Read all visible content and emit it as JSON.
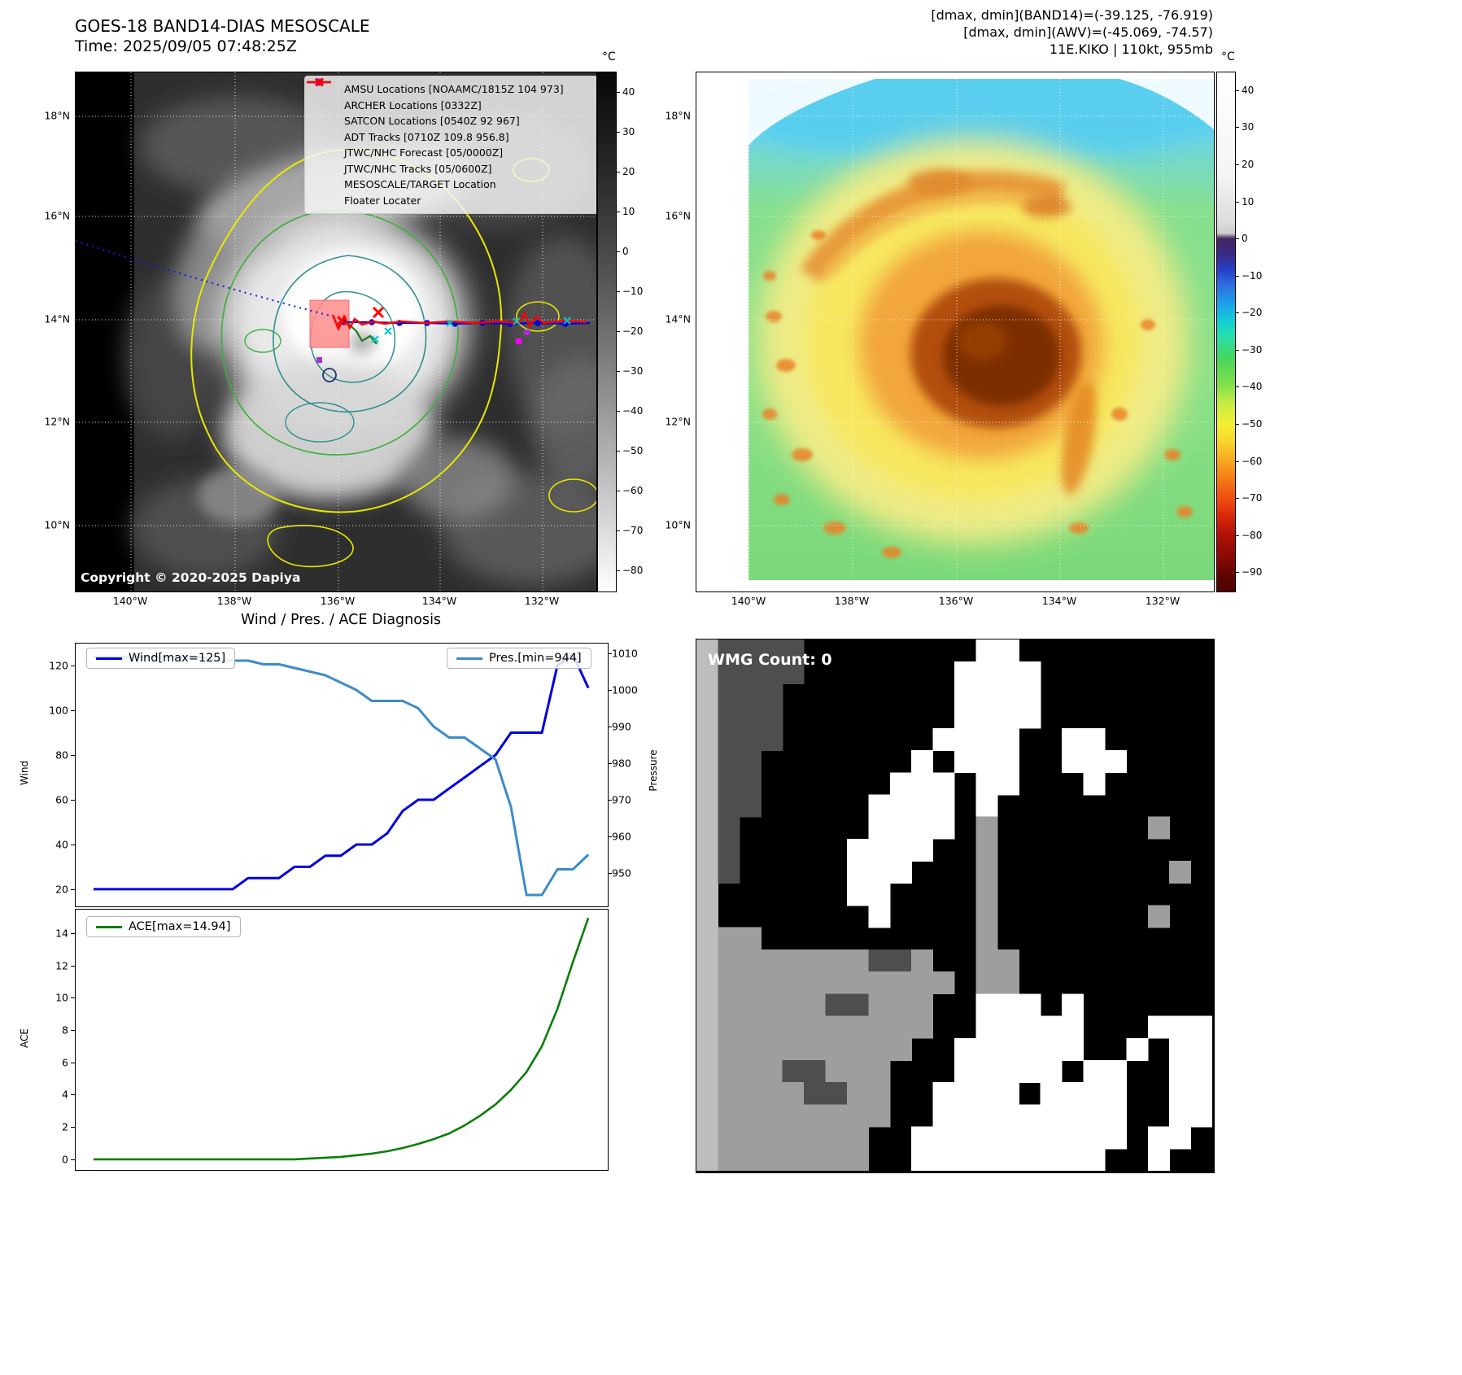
{
  "band14_panel": {
    "title": "GOES-18 BAND14-DIAS MESOSCALE",
    "subtitle": "Time: 2025/09/05 07:48:25Z",
    "copyright": "Copyright © 2020-2025 Dapiya",
    "colorbar": {
      "unit": "°C",
      "vmax": 45,
      "vmin": -85,
      "tick_values": [
        40,
        30,
        20,
        10,
        0,
        -10,
        -20,
        -30,
        -40,
        -50,
        -60,
        -70,
        -80
      ],
      "tick_labels": [
        "40",
        "30",
        "20",
        "10",
        "0",
        "−10",
        "−20",
        "−30",
        "−40",
        "−50",
        "−60",
        "−70",
        "−80"
      ]
    },
    "lat_ticks": [
      "18°N",
      "16°N",
      "14°N",
      "12°N",
      "10°N"
    ],
    "lon_ticks": [
      "140°W",
      "138°W",
      "136°W",
      "134°W",
      "132°W"
    ],
    "legend": [
      {
        "label": "AMSU Locations [NOAAMC/1815Z 104 973]",
        "marker": "square",
        "color": "#ff00ff"
      },
      {
        "label": "ARCHER Locations [0332Z]",
        "marker": "square",
        "color": "#a832d8"
      },
      {
        "label": "SATCON Locations [0540Z 92 967]",
        "marker": "x",
        "color": "#00c5cd"
      },
      {
        "label": "ADT Tracks [0710Z 109.8 956.8]",
        "marker": "line",
        "color": "#1f7a1f"
      },
      {
        "label": "JTWC/NHC Forecast [05/0000Z]",
        "marker": "dotted-line",
        "color": "#0000ff"
      },
      {
        "label": "JTWC/NHC Tracks [05/0600Z]",
        "marker": "line-marker",
        "color": "#0000ff"
      },
      {
        "label": "MESOSCALE/TARGET Location",
        "marker": "X",
        "color": "#ff0000"
      },
      {
        "label": "Floater Locater",
        "marker": "line",
        "color": "#ff0000"
      }
    ]
  },
  "enhanced_panel": {
    "header_lines": [
      "[dmax, dmin](BAND14)=(-39.125, -76.919)",
      "[dmax, dmin](AWV)=(-45.069, -74.57)",
      "11E.KIKO | 110kt, 955mb"
    ],
    "colorbar": {
      "unit": "°C",
      "vmax": 45,
      "vmin": -95,
      "tick_values": [
        40,
        30,
        20,
        10,
        0,
        -10,
        -20,
        -30,
        -40,
        -50,
        -60,
        -70,
        -80,
        -90
      ],
      "tick_labels": [
        "40",
        "30",
        "20",
        "10",
        "0",
        "−10",
        "−20",
        "−30",
        "−40",
        "−50",
        "−60",
        "−70",
        "−80",
        "−90"
      ]
    },
    "lat_ticks": [
      "18°N",
      "16°N",
      "14°N",
      "12°N",
      "10°N"
    ],
    "lon_ticks": [
      "140°W",
      "138°W",
      "136°W",
      "134°W",
      "132°W"
    ]
  },
  "chart_data": [
    {
      "type": "line",
      "title": "Wind / Pres. / ACE Diagnosis",
      "left_axis": {
        "label": "Wind",
        "ticks": [
          20,
          40,
          60,
          80,
          100,
          120
        ],
        "lim": [
          12.7,
          130.2
        ]
      },
      "right_axis": {
        "label": "Pressure",
        "ticks": [
          950,
          960,
          970,
          980,
          990,
          1000,
          1010
        ],
        "lim": [
          941.1,
          1012.9
        ]
      },
      "series": [
        {
          "name": "Wind[max=125]",
          "axis": "left",
          "color": "#0000dd",
          "values": [
            20,
            20,
            20,
            20,
            20,
            20,
            20,
            20,
            20,
            20,
            25,
            25,
            25,
            30,
            30,
            35,
            35,
            40,
            40,
            45,
            55,
            60,
            60,
            65,
            70,
            75,
            80,
            90,
            90,
            90,
            120,
            125,
            110
          ]
        },
        {
          "name": "Pres.[min=944]",
          "axis": "right",
          "color": "#3d8bc9",
          "values": [
            1009,
            1009,
            1009,
            1009,
            1009,
            1009,
            1009,
            1009,
            1008,
            1008,
            1008,
            1007,
            1007,
            1006,
            1005,
            1004,
            1002,
            1000,
            997,
            997,
            997,
            995,
            990,
            987,
            987,
            984,
            981,
            968,
            944,
            944,
            951,
            951,
            955
          ]
        }
      ]
    },
    {
      "type": "line",
      "left_axis": {
        "label": "ACE",
        "ticks": [
          0,
          2,
          4,
          6,
          8,
          10,
          12,
          14
        ],
        "lim": [
          -0.61,
          15.51
        ]
      },
      "series": [
        {
          "name": "ACE[max=14.94]",
          "axis": "left",
          "color": "#0a7d0a",
          "values": [
            0,
            0,
            0,
            0,
            0,
            0,
            0,
            0,
            0,
            0,
            0,
            0,
            0,
            0,
            0.05,
            0.1,
            0.15,
            0.25,
            0.35,
            0.5,
            0.7,
            0.95,
            1.25,
            1.6,
            2.1,
            2.7,
            3.4,
            4.3,
            5.4,
            7.0,
            9.3,
            12.2,
            14.94
          ]
        }
      ]
    }
  ],
  "wmg_panel": {
    "label": "WMG Count: 0",
    "palette": {
      ".": "#000000",
      "w": "#ffffff",
      "l": "#bdbdbd",
      "g": "#9e9e9e",
      "d": "#4e4e4e"
    },
    "rows": [
      "ldddd........ww.........",
      "ldddd.......wwww........",
      "lddd........wwww........",
      "lddd........wwww........",
      "lddd.......wwww..ww.....",
      "ldd.......w.www..www....",
      "ldd......www.ww...w.....",
      "ldd.....wwww.w..........",
      "ld......wwww.g.......g..",
      "ld.....wwww..g..........",
      "ld.....www...g........g.",
      "l......ww....g..........",
      "l.......w....g.......g..",
      "lgg..........g..........",
      "lgggggggddg..gg.........",
      "lggggggggggg.gg.........",
      "lgggggddggg..www.w......",
      "lgggggggggg..wwwww...www",
      "lggggggggg..wwwwww..w.ww",
      "lgggddggg...wwwww.ww..ww",
      "lggggddgg..wwww.wwww..ww",
      "lgggggggg..wwwwwwwww..ww",
      "lggggggg..wwwwwwwwww.ww.",
      "lggggggg..wwwwwwwww..w.."
    ]
  }
}
